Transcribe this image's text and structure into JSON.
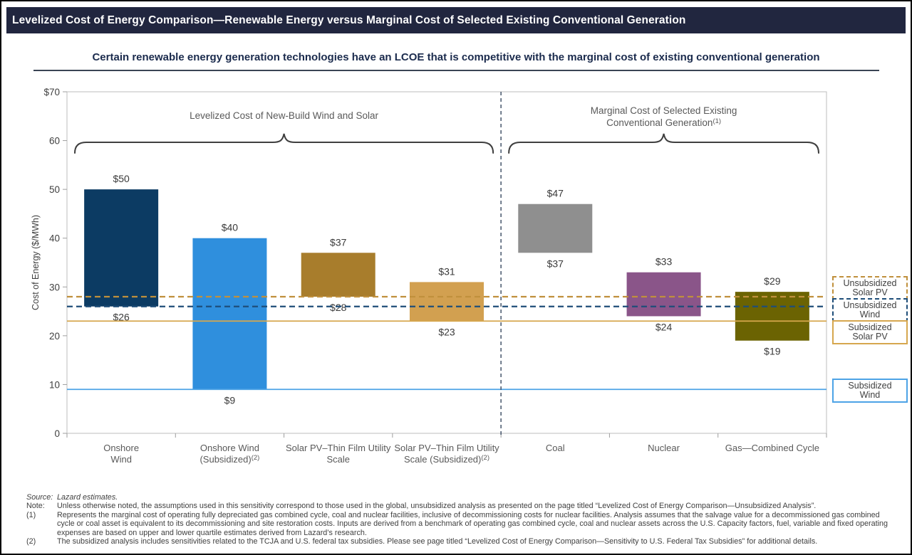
{
  "header": {
    "title": "Levelized Cost of Energy Comparison—Renewable Energy versus Marginal Cost of Selected Existing Conventional Generation"
  },
  "subtitle": "Certain renewable energy generation technologies have an LCOE that is competitive with the marginal cost of existing conventional generation",
  "chart_data": {
    "type": "bar",
    "subtype": "floating-range-bars",
    "title": "",
    "ylabel": "Cost of Energy ($/MWh)",
    "xlabel": "",
    "ylim": [
      0,
      70
    ],
    "ytick_step": 10,
    "ytick_labels": [
      "$70",
      "60",
      "50",
      "40",
      "30",
      "20",
      "10",
      "0"
    ],
    "grid": false,
    "bars": [
      {
        "id": "onshore-wind",
        "name": [
          "Onshore",
          "Wind"
        ],
        "sup": "",
        "low": 26,
        "high": 50,
        "color": "#0c3b63"
      },
      {
        "id": "onshore-wind-subsidized",
        "name": [
          "Onshore Wind",
          "(Subsidized)"
        ],
        "sup": "(2)",
        "low": 9,
        "high": 40,
        "color": "#2f8fdd"
      },
      {
        "id": "solar-pv-thin-film",
        "name": [
          "Solar PV–Thin Film Utility",
          "Scale"
        ],
        "sup": "",
        "low": 28,
        "high": 37,
        "color": "#a87d2c"
      },
      {
        "id": "solar-pv-thin-film-subsidized",
        "name": [
          "Solar PV–Thin Film Utility",
          "Scale (Subsidized)"
        ],
        "sup": "(2)",
        "low": 23,
        "high": 31,
        "color": "#d2a050"
      },
      {
        "id": "coal",
        "name": [
          "Coal"
        ],
        "sup": "",
        "low": 37,
        "high": 47,
        "color": "#8f8f8f"
      },
      {
        "id": "nuclear",
        "name": [
          "Nuclear"
        ],
        "sup": "",
        "low": 24,
        "high": 33,
        "color": "#8a5589"
      },
      {
        "id": "gas-combined-cycle",
        "name": [
          "Gas—Combined Cycle"
        ],
        "sup": "",
        "low": 19,
        "high": 29,
        "color": "#6b6302"
      }
    ],
    "groups": [
      {
        "id": "left",
        "lines": [
          "Levelized Cost of New-Build Wind and Solar"
        ],
        "sup": "",
        "span": [
          0,
          3
        ]
      },
      {
        "id": "right",
        "lines": [
          "Marginal Cost of Selected Existing",
          "Conventional Generation"
        ],
        "sup": "(1)",
        "span": [
          4,
          6
        ]
      }
    ],
    "separator_after_index": 3,
    "reference_lines": [
      {
        "id": "unsubsidized-solar-pv",
        "label": [
          "Unsubsidized",
          "Solar PV"
        ],
        "value": 28,
        "style": "dashed",
        "color": "#c0903c"
      },
      {
        "id": "unsubsidized-wind",
        "label": [
          "Unsubsidized",
          "Wind"
        ],
        "value": 26,
        "style": "dashed",
        "color": "#1f4e79"
      },
      {
        "id": "subsidized-solar-pv",
        "label": [
          "Subsidized",
          "Solar PV"
        ],
        "value": 23,
        "style": "solid",
        "color": "#d6a74e"
      },
      {
        "id": "subsidized-wind",
        "label": [
          "Subsidized",
          "Wind"
        ],
        "value": 9,
        "style": "solid",
        "color": "#4da3e6"
      }
    ],
    "legend_position": "right-outside"
  },
  "footnotes": [
    {
      "label": "Source:",
      "text": "Lazard estimates.",
      "italic": true
    },
    {
      "label": "Note:",
      "text": "Unless otherwise noted, the assumptions used in this sensitivity correspond to those used in the global, unsubsidized analysis as presented on the page titled “Levelized Cost of Energy Comparison—Unsubsidized Analysis”.",
      "italic": false
    },
    {
      "label": "(1)",
      "text": "Represents the marginal cost of operating fully depreciated gas combined cycle, coal and nuclear facilities, inclusive of decommissioning costs for nuclear facilities. Analysis assumes that the salvage value for a decommissioned gas combined cycle or coal asset is equivalent to its decommissioning and site restoration costs. Inputs are derived from a benchmark of operating gas combined cycle, coal and nuclear assets across the U.S. Capacity factors, fuel, variable and fixed operating expenses are based on upper and lower quartile estimates derived from Lazard’s research.",
      "italic": false
    },
    {
      "label": "(2)",
      "text": "The subsidized analysis includes sensitivities related to the TCJA and U.S. federal tax subsidies. Please see page titled “Levelized Cost of Energy Comparison—Sensitivity to U.S. Federal Tax Subsidies” for additional details.",
      "italic": false
    }
  ]
}
